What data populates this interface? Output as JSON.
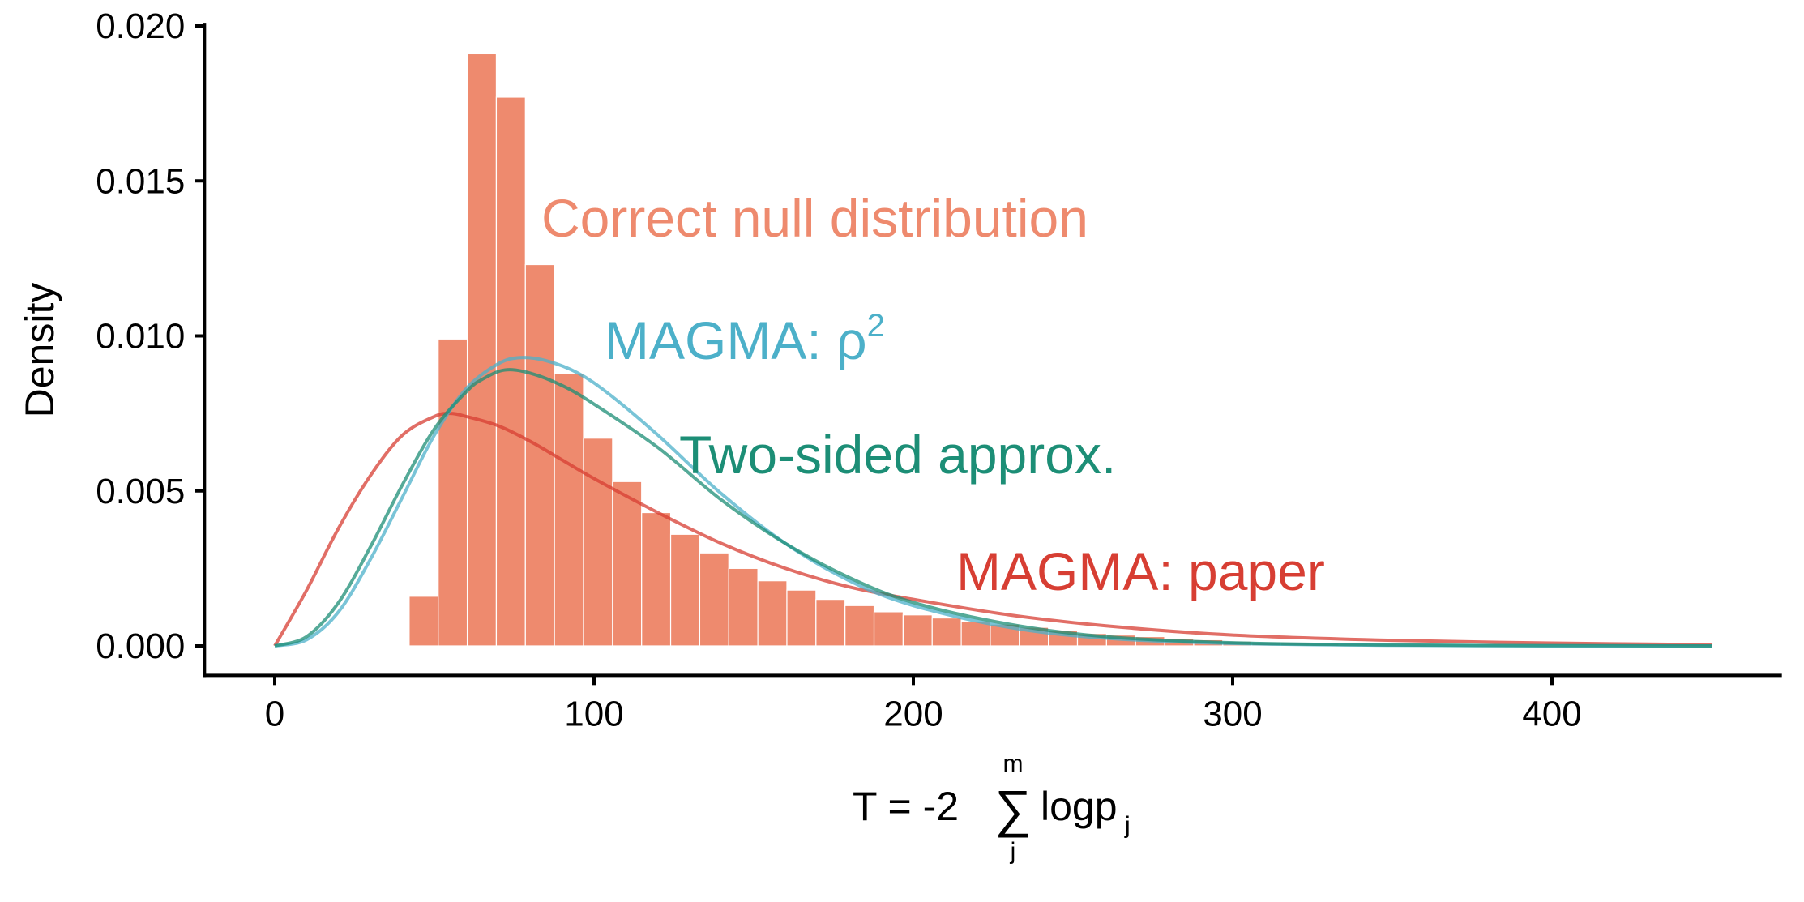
{
  "chart_data": {
    "type": "histogram",
    "xlabel": {
      "prefix": "T = -2 ",
      "sum_symbol": "∑",
      "sum_upper": "m",
      "sum_lower": "j",
      "term": "logp",
      "term_subscript": "j"
    },
    "ylabel": "Density",
    "xlim": [
      -22,
      472
    ],
    "ylim": [
      -0.00095,
      0.0201
    ],
    "x_ticks": [
      0,
      100,
      200,
      300,
      400
    ],
    "x_tick_labels": [
      "0",
      "100",
      "200",
      "300",
      "400"
    ],
    "y_ticks": [
      0.0,
      0.005,
      0.01,
      0.015,
      0.02
    ],
    "y_tick_labels": [
      "0.000",
      "0.005",
      "0.010",
      "0.015",
      "0.020"
    ],
    "grid": false,
    "histogram": {
      "name": "Correct null distribution",
      "color": "#EE8A6E",
      "bin_width": 9.1,
      "bin_start": 33.0,
      "densities": [
        0.0,
        0.0016,
        0.0099,
        0.0191,
        0.0177,
        0.0123,
        0.0088,
        0.0067,
        0.0053,
        0.0043,
        0.0036,
        0.003,
        0.0025,
        0.0021,
        0.0018,
        0.0015,
        0.0013,
        0.0011,
        0.001,
        0.0009,
        0.0008,
        0.0007,
        0.0006,
        0.0005,
        0.0004,
        0.00035,
        0.0003,
        0.00025,
        0.0002,
        0.00015,
        0.00012,
        0.0001,
        8e-05,
        6e-05,
        5e-05,
        4e-05,
        3e-05,
        2e-05,
        2e-05,
        1e-05,
        1e-05,
        1e-05,
        1e-05,
        1e-05,
        0.0
      ]
    },
    "series": [
      {
        "name": "MAGMA: paper",
        "color": "#D73E33",
        "x": [
          0,
          10,
          20,
          30,
          40,
          50,
          55,
          60,
          70,
          80,
          90,
          100,
          120,
          140,
          160,
          180,
          200,
          230,
          260,
          300,
          350,
          400,
          450
        ],
        "y": [
          0.0,
          0.0018,
          0.0038,
          0.0055,
          0.0068,
          0.0074,
          0.0075,
          0.0074,
          0.0071,
          0.0066,
          0.006,
          0.0054,
          0.0043,
          0.0033,
          0.0025,
          0.0019,
          0.0015,
          0.001,
          0.00065,
          0.00035,
          0.00018,
          9e-05,
          4e-05
        ]
      },
      {
        "name": "MAGMA: ρ²",
        "color": "#4CB0C9",
        "x": [
          0,
          10,
          20,
          30,
          40,
          50,
          60,
          70,
          77,
          85,
          95,
          105,
          120,
          140,
          160,
          180,
          200,
          230,
          260,
          300,
          350,
          400,
          450
        ],
        "y": [
          0.0,
          0.0002,
          0.0011,
          0.0028,
          0.0048,
          0.0068,
          0.0083,
          0.0091,
          0.0093,
          0.0092,
          0.0088,
          0.0081,
          0.0068,
          0.0049,
          0.0033,
          0.0021,
          0.0013,
          0.0006,
          0.00025,
          8e-05,
          2e-05,
          0.0,
          0.0
        ]
      },
      {
        "name": "Two-sided approx.",
        "color": "#1C8E76",
        "x": [
          0,
          10,
          20,
          30,
          40,
          50,
          60,
          65,
          72,
          80,
          90,
          100,
          120,
          140,
          160,
          180,
          200,
          230,
          260,
          300,
          350,
          400,
          450
        ],
        "y": [
          0.0,
          0.0003,
          0.0014,
          0.0032,
          0.0052,
          0.007,
          0.0082,
          0.0086,
          0.0089,
          0.0088,
          0.0084,
          0.0078,
          0.0064,
          0.0047,
          0.0033,
          0.0022,
          0.0014,
          0.0007,
          0.0003,
          0.0001,
          3e-05,
          1e-05,
          0.0
        ]
      }
    ],
    "annotations": [
      {
        "text": "Correct null distribution",
        "sup": "",
        "color": "#EE8A6E"
      },
      {
        "text": "MAGMA: ρ",
        "sup": "2",
        "color": "#4CB0C9"
      },
      {
        "text": "Two-sided approx.",
        "sup": "",
        "color": "#1C8E76"
      },
      {
        "text": "MAGMA: paper",
        "sup": "",
        "color": "#D73E33"
      }
    ]
  }
}
